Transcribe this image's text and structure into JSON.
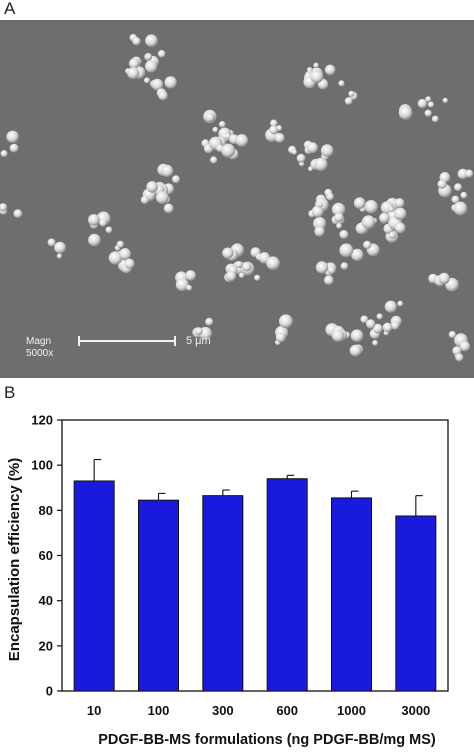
{
  "panel_a": {
    "label": "A",
    "magnification_label": "Magn",
    "magnification_value": "5000x",
    "scale_bar_label": "5 μm"
  },
  "panel_b": {
    "label": "B"
  },
  "chart_data": {
    "type": "bar",
    "categories": [
      "10",
      "100",
      "300",
      "600",
      "1000",
      "3000"
    ],
    "values": [
      93,
      84.5,
      86.5,
      94,
      85.5,
      77.5
    ],
    "error_bars": [
      9.5,
      3,
      2.5,
      1.5,
      3,
      9
    ],
    "ylim": [
      0,
      120
    ],
    "yticks": [
      "0",
      "20",
      "40",
      "60",
      "80",
      "100",
      "120"
    ],
    "xlabel": "PDGF-BB-MS formulations (ng PDGF-BB/mg MS)",
    "ylabel": "Encapsulation efficiency (%)",
    "bar_color": "#1a1adf",
    "grid": false
  }
}
